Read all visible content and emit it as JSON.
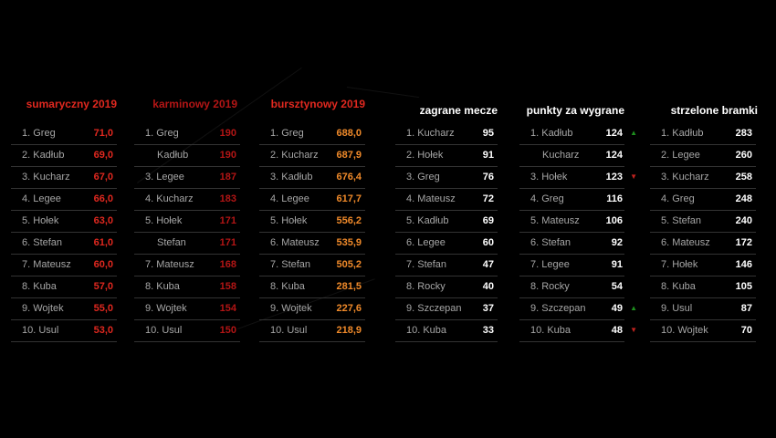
{
  "colors": {
    "background": "#000000",
    "red": "#e0281f",
    "darkred": "#b31515",
    "orange": "#f08a2a",
    "white": "#ffffff",
    "gray": "#a6a6a6",
    "up": "#1e8f1e",
    "down": "#c0231f"
  },
  "panels": [
    {
      "title": "sumaryczny 2019",
      "rows": [
        {
          "name": "1. Greg",
          "value": "71,0"
        },
        {
          "name": "2. Kadłub",
          "value": "69,0"
        },
        {
          "name": "3. Kucharz",
          "value": "67,0"
        },
        {
          "name": "4. Legee",
          "value": "66,0"
        },
        {
          "name": "5. Hołek",
          "value": "63,0"
        },
        {
          "name": "6. Stefan",
          "value": "61,0"
        },
        {
          "name": "7. Mateusz",
          "value": "60,0"
        },
        {
          "name": "8. Kuba",
          "value": "57,0"
        },
        {
          "name": "9. Wojtek",
          "value": "55,0"
        },
        {
          "name": "10. Usul",
          "value": "53,0"
        }
      ]
    },
    {
      "title": "karminowy 2019",
      "rows": [
        {
          "name": "1. Greg",
          "value": "190"
        },
        {
          "name": "Kadłub",
          "value": "190"
        },
        {
          "name": "3. Legee",
          "value": "187"
        },
        {
          "name": "4. Kucharz",
          "value": "183"
        },
        {
          "name": "5. Hołek",
          "value": "171"
        },
        {
          "name": "Stefan",
          "value": "171"
        },
        {
          "name": "7. Mateusz",
          "value": "168"
        },
        {
          "name": "8. Kuba",
          "value": "158"
        },
        {
          "name": "9. Wojtek",
          "value": "154"
        },
        {
          "name": "10. Usul",
          "value": "150"
        }
      ]
    },
    {
      "title": "bursztynowy 2019",
      "rows": [
        {
          "name": "1. Greg",
          "value": "688,0"
        },
        {
          "name": "2. Kucharz",
          "value": "687,9"
        },
        {
          "name": "3. Kadłub",
          "value": "676,4"
        },
        {
          "name": "4. Legee",
          "value": "617,7"
        },
        {
          "name": "5. Hołek",
          "value": "556,2"
        },
        {
          "name": "6. Mateusz",
          "value": "535,9"
        },
        {
          "name": "7. Stefan",
          "value": "505,2"
        },
        {
          "name": "8. Kuba",
          "value": "281,5"
        },
        {
          "name": "9. Wojtek",
          "value": "227,6"
        },
        {
          "name": "10. Usul",
          "value": "218,9"
        }
      ]
    },
    {
      "title": "zagrane mecze",
      "rows": [
        {
          "name": "1. Kucharz",
          "value": "95"
        },
        {
          "name": "2. Hołek",
          "value": "91"
        },
        {
          "name": "3. Greg",
          "value": "76"
        },
        {
          "name": "4. Mateusz",
          "value": "72"
        },
        {
          "name": "5. Kadłub",
          "value": "69"
        },
        {
          "name": "6. Legee",
          "value": "60"
        },
        {
          "name": "7. Stefan",
          "value": "47"
        },
        {
          "name": "8. Rocky",
          "value": "40"
        },
        {
          "name": "9. Szczepan",
          "value": "37"
        },
        {
          "name": "10. Kuba",
          "value": "33"
        }
      ]
    },
    {
      "title": "punkty za wygrane",
      "rows": [
        {
          "name": "1. Kadłub",
          "value": "124",
          "arrow": "up"
        },
        {
          "name": "Kucharz",
          "value": "124"
        },
        {
          "name": "3. Hołek",
          "value": "123",
          "arrow": "down"
        },
        {
          "name": "4. Greg",
          "value": "116"
        },
        {
          "name": "5. Mateusz",
          "value": "106"
        },
        {
          "name": "6. Stefan",
          "value": "92"
        },
        {
          "name": "7. Legee",
          "value": "91"
        },
        {
          "name": "8. Rocky",
          "value": "54"
        },
        {
          "name": "9. Szczepan",
          "value": "49",
          "arrow": "up"
        },
        {
          "name": "10. Kuba",
          "value": "48",
          "arrow": "down"
        }
      ]
    },
    {
      "title": "strzelone bramki",
      "rows": [
        {
          "name": "1. Kadłub",
          "value": "283"
        },
        {
          "name": "2. Legee",
          "value": "260"
        },
        {
          "name": "3. Kucharz",
          "value": "258"
        },
        {
          "name": "4. Greg",
          "value": "248"
        },
        {
          "name": "5. Stefan",
          "value": "240"
        },
        {
          "name": "6. Mateusz",
          "value": "172"
        },
        {
          "name": "7. Hołek",
          "value": "146"
        },
        {
          "name": "8. Kuba",
          "value": "105"
        },
        {
          "name": "9. Usul",
          "value": "87"
        },
        {
          "name": "10. Wojtek",
          "value": "70"
        }
      ]
    }
  ]
}
